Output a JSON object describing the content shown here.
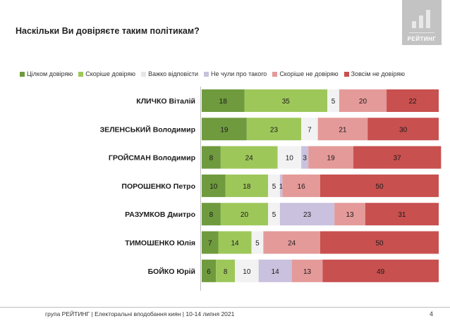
{
  "title": "Наскільки Ви довіряєте таким політикам?",
  "logo": {
    "text": "РЕЙТИНГ"
  },
  "footer": {
    "text": "група РЕЙТИНГ | Електоральні вподобання киян |  10-14 липня 2021"
  },
  "page_number": "4",
  "colors": {
    "full_trust": "#6f9a3e",
    "rather_trust": "#9ec75a",
    "hard_to_say": "#f2f2f2",
    "never_heard": "#c9c1dd",
    "rather_not_trust": "#e49a99",
    "no_trust": "#c8504f"
  },
  "chart_data": {
    "type": "bar",
    "orientation": "horizontal",
    "stacked": true,
    "title": "Наскільки Ви довіряєте таким політикам?",
    "xlim": [
      0,
      100
    ],
    "legend_position": "top",
    "categories": [
      "КЛИЧКО Віталій",
      "ЗЕЛЕНСЬКИЙ Володимир",
      "ГРОЙСМАН Володимир",
      "ПОРОШЕНКО Петро",
      "РАЗУМКОВ Дмитро",
      "ТИМОШЕНКО Юлія",
      "БОЙКО Юрій"
    ],
    "series": [
      {
        "name": "Цілком довіряю",
        "color": "#6f9a3e",
        "values": [
          18,
          19,
          8,
          10,
          8,
          7,
          6
        ]
      },
      {
        "name": "Скоріше довіряю",
        "color": "#9ec75a",
        "values": [
          35,
          23,
          24,
          18,
          20,
          14,
          8
        ]
      },
      {
        "name": "Важко відповісти",
        "color": "#f2f2f2",
        "values": [
          5,
          7,
          10,
          5,
          5,
          5,
          10
        ]
      },
      {
        "name": "Не чули про такого",
        "color": "#c9c1dd",
        "values": [
          0,
          0,
          3,
          1,
          23,
          0,
          14
        ]
      },
      {
        "name": "Скоріше не довіряю",
        "color": "#e49a99",
        "values": [
          20,
          21,
          19,
          16,
          13,
          24,
          13
        ]
      },
      {
        "name": "Зовсім не довіряю",
        "color": "#c8504f",
        "values": [
          22,
          30,
          37,
          50,
          31,
          50,
          49
        ]
      }
    ]
  }
}
